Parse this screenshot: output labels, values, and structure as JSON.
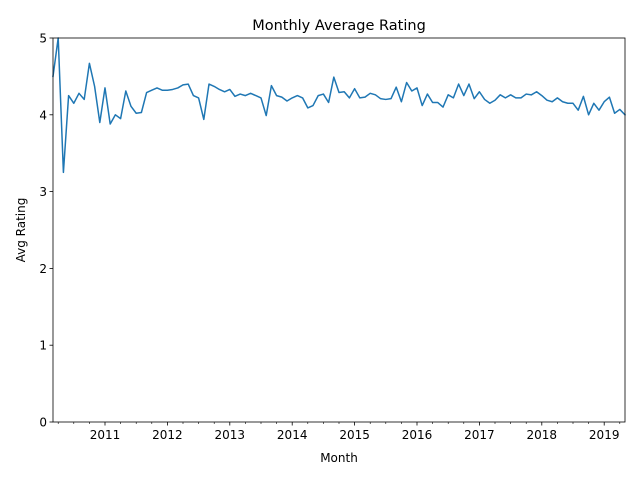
{
  "chart_data": {
    "type": "line",
    "title": "Monthly Average Rating",
    "xlabel": "Month",
    "ylabel": "Avg Rating",
    "ylim": [
      0,
      5
    ],
    "xlim": [
      "2010-03",
      "2019-05"
    ],
    "y_ticks": [
      "0",
      "1",
      "2",
      "3",
      "4",
      "5"
    ],
    "x_ticks": [
      "2011",
      "2012",
      "2013",
      "2014",
      "2015",
      "2016",
      "2017",
      "2018",
      "2019"
    ],
    "grid": false,
    "legend": "none",
    "colors": {
      "line": "#1f77b4"
    },
    "series": [
      {
        "x": [
          "2010-03",
          "2010-04",
          "2010-05",
          "2010-06",
          "2010-07",
          "2010-08",
          "2010-09",
          "2010-10",
          "2010-11",
          "2010-12",
          "2011-01",
          "2011-02",
          "2011-03",
          "2011-04",
          "2011-05",
          "2011-06",
          "2011-07",
          "2011-08",
          "2011-09",
          "2011-10",
          "2011-11",
          "2011-12",
          "2012-01",
          "2012-02",
          "2012-03",
          "2012-04",
          "2012-05",
          "2012-06",
          "2012-07",
          "2012-08",
          "2012-09",
          "2012-10",
          "2012-11",
          "2012-12",
          "2013-01",
          "2013-02",
          "2013-03",
          "2013-04",
          "2013-05",
          "2013-06",
          "2013-07",
          "2013-08",
          "2013-09",
          "2013-10",
          "2013-11",
          "2013-12",
          "2014-01",
          "2014-02",
          "2014-03",
          "2014-04",
          "2014-05",
          "2014-06",
          "2014-07",
          "2014-08",
          "2014-09",
          "2014-10",
          "2014-11",
          "2014-12",
          "2015-01",
          "2015-02",
          "2015-03",
          "2015-04",
          "2015-05",
          "2015-06",
          "2015-07",
          "2015-08",
          "2015-09",
          "2015-10",
          "2015-11",
          "2015-12",
          "2016-01",
          "2016-02",
          "2016-03",
          "2016-04",
          "2016-05",
          "2016-06",
          "2016-07",
          "2016-08",
          "2016-09",
          "2016-10",
          "2016-11",
          "2016-12",
          "2017-01",
          "2017-02",
          "2017-03",
          "2017-04",
          "2017-05",
          "2017-06",
          "2017-07",
          "2017-08",
          "2017-09",
          "2017-10",
          "2017-11",
          "2017-12",
          "2018-01",
          "2018-02",
          "2018-03",
          "2018-04",
          "2018-05",
          "2018-06",
          "2018-07",
          "2018-08",
          "2018-09",
          "2018-10",
          "2018-11",
          "2018-12",
          "2019-01",
          "2019-02",
          "2019-03",
          "2019-04",
          "2019-05"
        ],
        "values": [
          4.5,
          5.0,
          3.25,
          4.25,
          4.15,
          4.28,
          4.2,
          4.67,
          4.37,
          3.9,
          4.35,
          3.88,
          4.0,
          3.95,
          4.31,
          4.11,
          4.02,
          4.03,
          4.29,
          4.32,
          4.35,
          4.32,
          4.32,
          4.33,
          4.35,
          4.39,
          4.4,
          4.25,
          4.22,
          3.94,
          4.4,
          4.37,
          4.33,
          4.3,
          4.33,
          4.24,
          4.27,
          4.25,
          4.28,
          4.25,
          4.22,
          3.99,
          4.38,
          4.25,
          4.23,
          4.18,
          4.22,
          4.25,
          4.22,
          4.09,
          4.12,
          4.25,
          4.27,
          4.16,
          4.49,
          4.29,
          4.3,
          4.22,
          4.34,
          4.22,
          4.23,
          4.28,
          4.26,
          4.21,
          4.2,
          4.21,
          4.36,
          4.17,
          4.42,
          4.31,
          4.35,
          4.12,
          4.27,
          4.16,
          4.16,
          4.1,
          4.26,
          4.22,
          4.4,
          4.25,
          4.4,
          4.21,
          4.3,
          4.2,
          4.15,
          4.19,
          4.26,
          4.22,
          4.26,
          4.22,
          4.22,
          4.27,
          4.26,
          4.3,
          4.25,
          4.19,
          4.17,
          4.22,
          4.17,
          4.15,
          4.15,
          4.06,
          4.24,
          4.0,
          4.15,
          4.06,
          4.17,
          4.23,
          4.02,
          4.07,
          4.0
        ]
      }
    ]
  }
}
